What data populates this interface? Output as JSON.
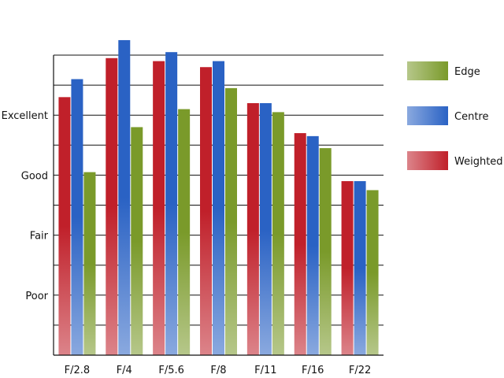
{
  "chart_data": {
    "type": "bar",
    "categories": [
      "F/2.8",
      "F/4",
      "F/5.6",
      "F/8",
      "F/11",
      "F/16",
      "F/22"
    ],
    "series": [
      {
        "name": "Weighted",
        "values": [
          8.6,
          9.9,
          9.8,
          9.6,
          8.4,
          7.4,
          5.8
        ],
        "color": "#c0202a"
      },
      {
        "name": "Centre",
        "values": [
          9.2,
          10.5,
          10.1,
          9.8,
          8.4,
          7.3,
          5.8
        ],
        "color": "#2a62c4"
      },
      {
        "name": "Edge",
        "values": [
          6.1,
          7.6,
          8.2,
          8.9,
          8.1,
          6.9,
          5.5
        ],
        "color": "#7a9a2a"
      }
    ],
    "ylim": [
      0,
      10
    ],
    "yticks": [
      {
        "value": 2,
        "label": "Poor"
      },
      {
        "value": 4,
        "label": "Fair"
      },
      {
        "value": 6,
        "label": "Good"
      },
      {
        "value": 8,
        "label": "Excellent"
      }
    ],
    "grid": true,
    "legend_position": "right",
    "legend_order": [
      "Edge",
      "Centre",
      "Weighted"
    ]
  }
}
